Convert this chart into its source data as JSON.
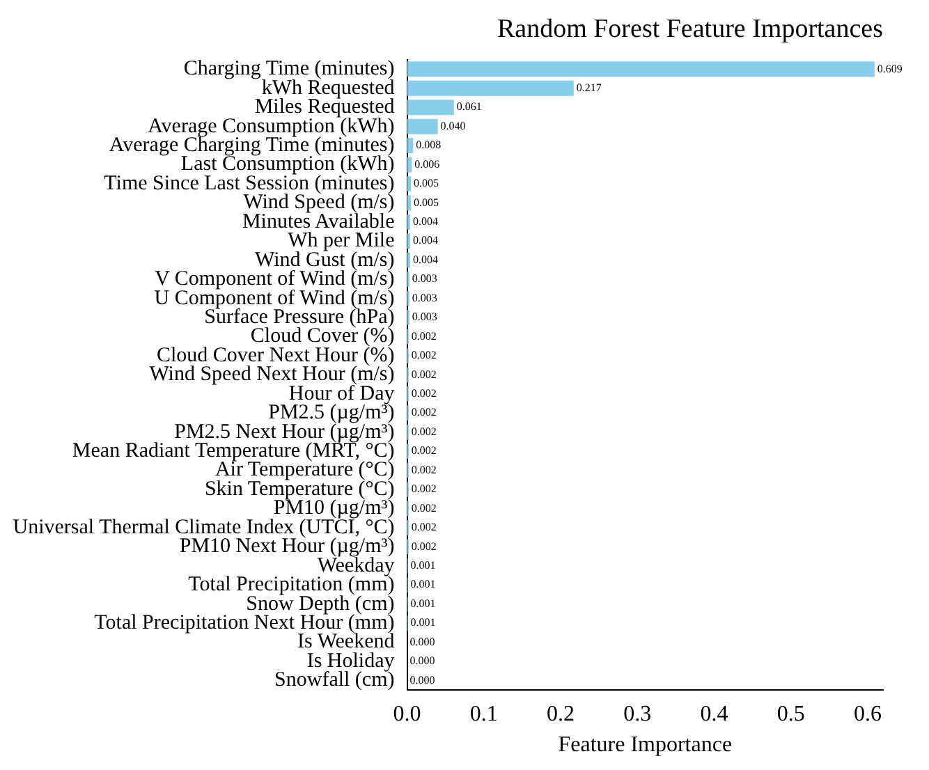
{
  "chart_data": {
    "type": "bar",
    "orientation": "horizontal",
    "title": "Random Forest Feature Importances",
    "xlabel": "Feature Importance",
    "categories": [
      "Charging Time (minutes)",
      "kWh Requested",
      "Miles Requested",
      "Average Consumption (kWh)",
      "Average Charging Time (minutes)",
      "Last Consumption (kWh)",
      "Time Since Last Session (minutes)",
      "Wind Speed (m/s)",
      "Minutes Available",
      "Wh per Mile",
      "Wind Gust (m/s)",
      "V Component of Wind (m/s)",
      "U Component of Wind (m/s)",
      "Surface Pressure (hPa)",
      "Cloud Cover (%)",
      "Cloud Cover Next Hour (%)",
      "Wind Speed Next Hour (m/s)",
      "Hour of Day",
      "PM2.5 (µg/m³)",
      "PM2.5 Next Hour (µg/m³)",
      "Mean Radiant Temperature (MRT, °C)",
      "Air Temperature (°C)",
      "Skin Temperature (°C)",
      "PM10 (µg/m³)",
      "Universal Thermal Climate Index (UTCI, °C)",
      "PM10 Next Hour (µg/m³)",
      "Weekday",
      "Total Precipitation (mm)",
      "Snow Depth (cm)",
      "Total Precipitation Next Hour (mm)",
      "Is Weekend",
      "Is Holiday",
      "Snowfall (cm)"
    ],
    "values": [
      0.609,
      0.217,
      0.061,
      0.04,
      0.008,
      0.006,
      0.005,
      0.005,
      0.004,
      0.004,
      0.004,
      0.003,
      0.003,
      0.003,
      0.002,
      0.002,
      0.002,
      0.002,
      0.002,
      0.002,
      0.002,
      0.002,
      0.002,
      0.002,
      0.002,
      0.002,
      0.001,
      0.001,
      0.001,
      0.001,
      0.0,
      0.0,
      0.0
    ],
    "value_labels": [
      "0.609",
      "0.217",
      "0.061",
      "0.040",
      "0.008",
      "0.006",
      "0.005",
      "0.005",
      "0.004",
      "0.004",
      "0.004",
      "0.003",
      "0.003",
      "0.003",
      "0.002",
      "0.002",
      "0.002",
      "0.002",
      "0.002",
      "0.002",
      "0.002",
      "0.002",
      "0.002",
      "0.002",
      "0.002",
      "0.002",
      "0.001",
      "0.001",
      "0.001",
      "0.001",
      "0.000",
      "0.000",
      "0.000"
    ],
    "color": "#87ceeb",
    "xlim": [
      0,
      0.62
    ],
    "xticks": [
      {
        "value": 0,
        "label": "0.0"
      },
      0.1,
      0.2,
      0.3,
      0.4,
      0.5,
      0.6
    ],
    "grid": false,
    "legend": false
  }
}
